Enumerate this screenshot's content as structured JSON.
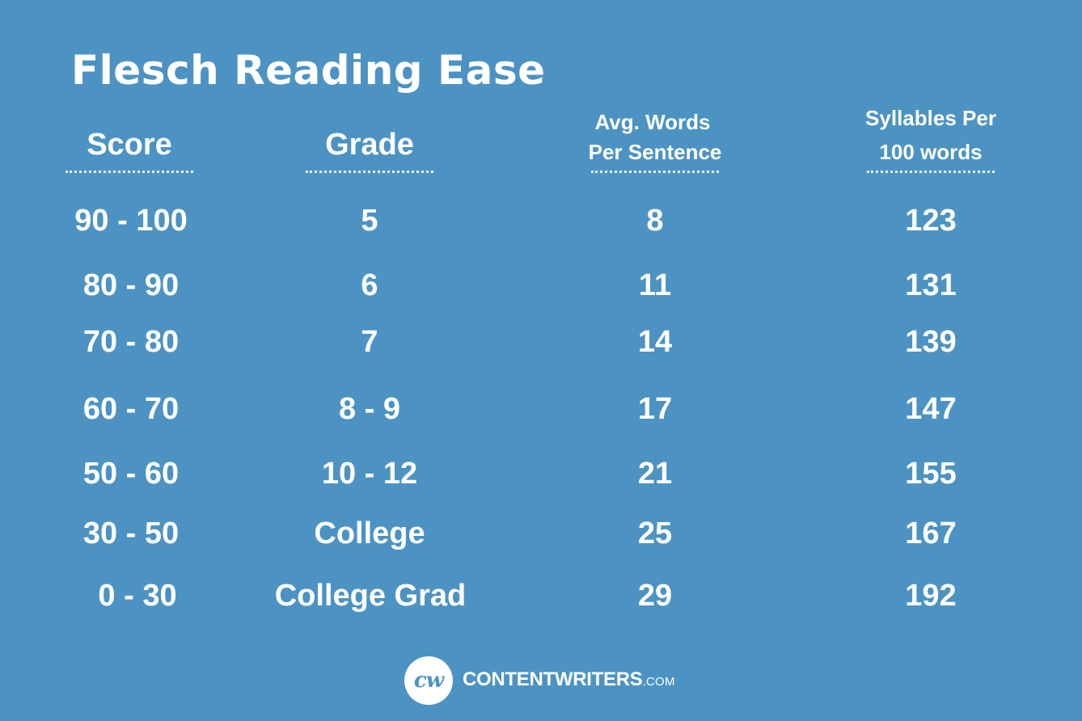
{
  "title": "Flesch Reading Ease",
  "headers": {
    "score": "Score",
    "grade": "Grade",
    "words_line1": "Avg. Words",
    "words_line2": "Per Sentence",
    "syllables_line1": "Syllables Per",
    "syllables_line2": "100 words"
  },
  "rows": [
    {
      "score": "90 - 100",
      "grade": "5",
      "words": "8",
      "syllables": "123"
    },
    {
      "score": "80 - 90",
      "grade": "6",
      "words": "11",
      "syllables": "131"
    },
    {
      "score": "70 - 80",
      "grade": "7",
      "words": "14",
      "syllables": "139"
    },
    {
      "score": "60 - 70",
      "grade": "8 - 9",
      "words": "17",
      "syllables": "147"
    },
    {
      "score": "50 - 60",
      "grade": "10 - 12",
      "words": "21",
      "syllables": "155"
    },
    {
      "score": "30 - 50",
      "grade": "College",
      "words": "25",
      "syllables": "167"
    },
    {
      "score": "0 - 30",
      "grade": "College Grad",
      "words": "29",
      "syllables": "192"
    }
  ],
  "footer": {
    "logo_text": "cw",
    "brand_name": "CONTENTWRITERS",
    "brand_suffix": ".COM"
  },
  "colors": {
    "background": "#4c93c3",
    "text": "#ffffff"
  }
}
